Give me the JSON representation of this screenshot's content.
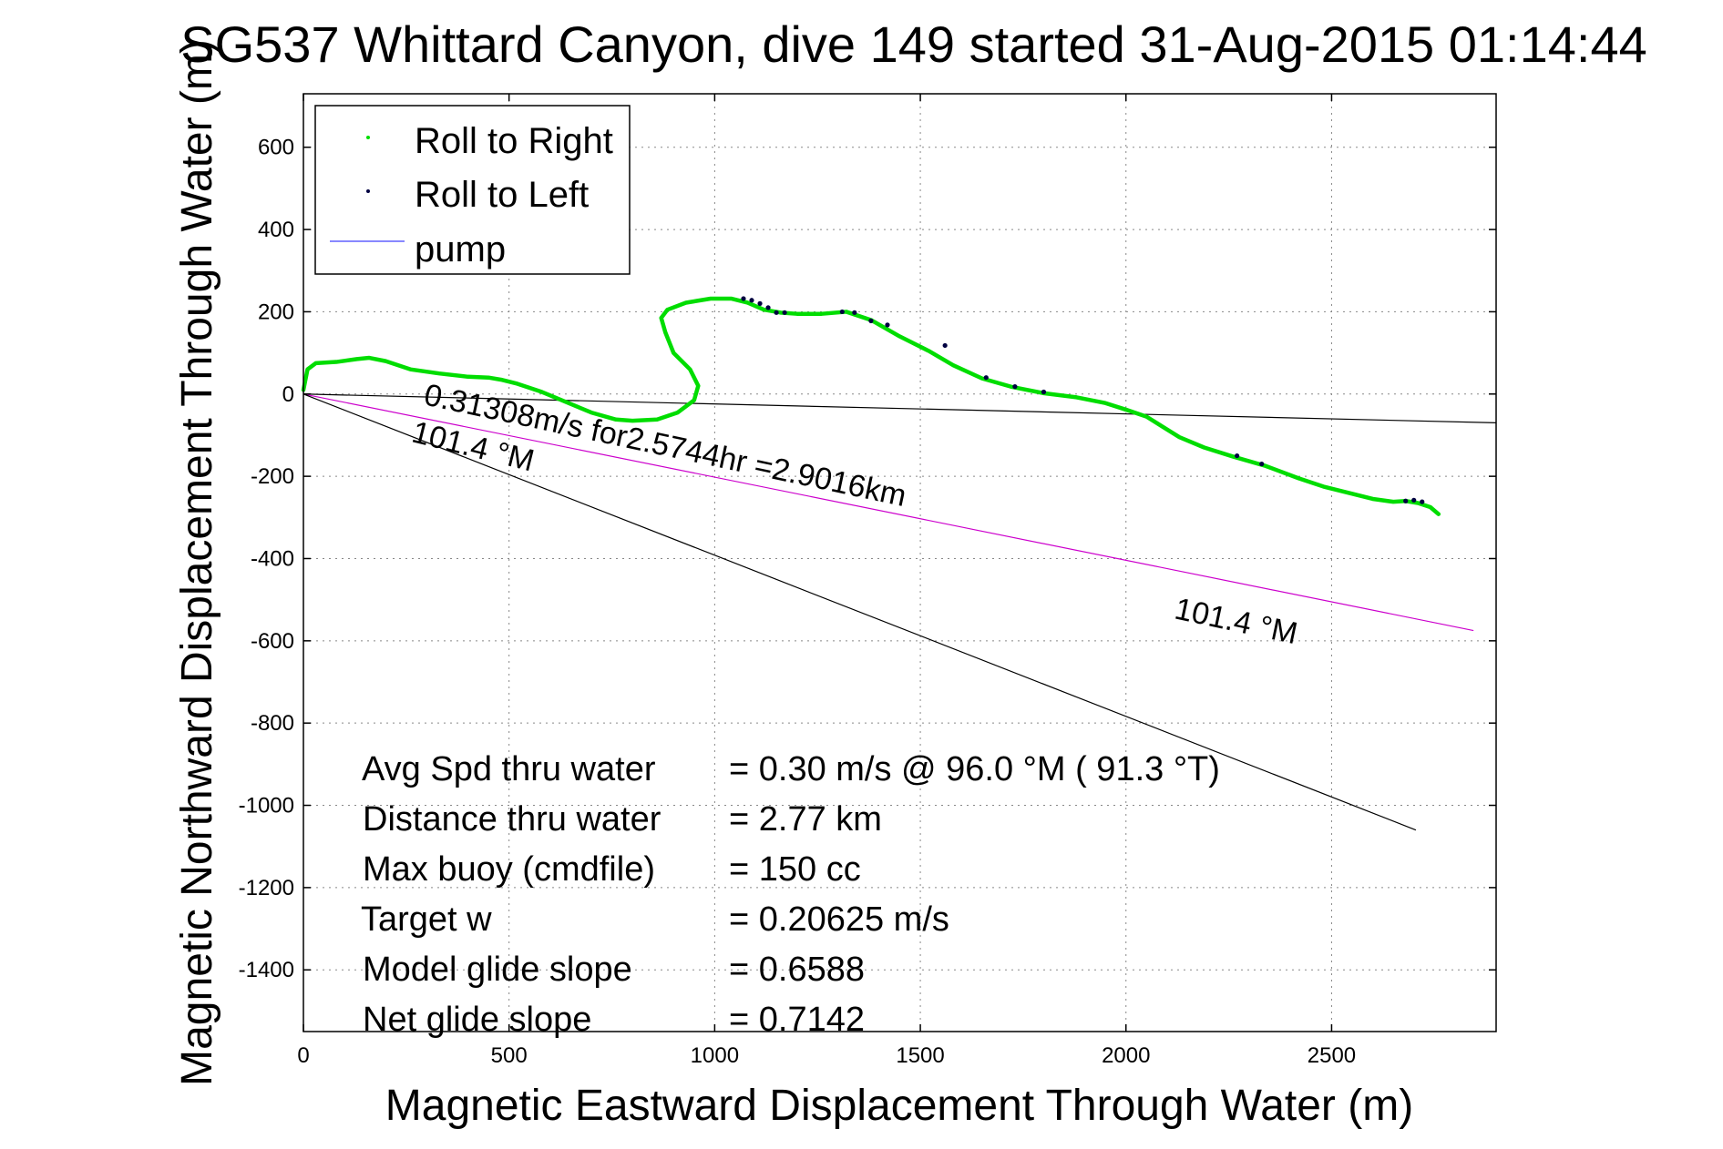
{
  "chart_data": {
    "type": "line",
    "title": "SG537 Whittard Canyon, dive 149 started 31-Aug-2015 01:14:44",
    "xlabel": "Magnetic Eastward Displacement Through Water (m)",
    "ylabel": "Magnetic Northward Displacement Through Water (m)",
    "xlim": [
      0,
      2900
    ],
    "ylim": [
      -1550,
      730
    ],
    "xticks": [
      0,
      500,
      1000,
      1500,
      2000,
      2500
    ],
    "yticks": [
      600,
      400,
      200,
      0,
      -200,
      -400,
      -600,
      -800,
      -1000,
      -1200,
      -1400
    ],
    "grid": true,
    "legend": {
      "position": "top-left",
      "items": [
        {
          "label": "Roll to Right",
          "color": "#00dd00",
          "marker": "dot"
        },
        {
          "label": "Roll to Left",
          "color": "#000040",
          "marker": "dot"
        },
        {
          "label": "pump",
          "color": "#6060ff",
          "marker": "line"
        }
      ]
    },
    "series": [
      {
        "name": "Roll to Right",
        "color": "#00dd00",
        "x": [
          0,
          10,
          30,
          80,
          130,
          160,
          200,
          260,
          330,
          400,
          450,
          480,
          520,
          580,
          640,
          700,
          760,
          800,
          860,
          910,
          950,
          960,
          940,
          900,
          880,
          870,
          885,
          930,
          990,
          1040,
          1080,
          1120,
          1160,
          1200,
          1260,
          1320,
          1380,
          1450,
          1520,
          1580,
          1650,
          1720,
          1800,
          1880,
          1950,
          2000,
          2050,
          2090,
          2130,
          2190,
          2260,
          2340,
          2420,
          2480,
          2540,
          2600,
          2650,
          2680,
          2710,
          2740,
          2760
        ],
        "y": [
          10,
          60,
          75,
          78,
          85,
          88,
          80,
          60,
          50,
          42,
          40,
          35,
          25,
          5,
          -20,
          -45,
          -62,
          -65,
          -62,
          -45,
          -15,
          20,
          60,
          100,
          150,
          185,
          205,
          222,
          232,
          232,
          222,
          205,
          198,
          195,
          195,
          200,
          180,
          140,
          105,
          70,
          38,
          18,
          2,
          -8,
          -22,
          -38,
          -55,
          -80,
          -105,
          -130,
          -152,
          -175,
          -205,
          -225,
          -240,
          -255,
          -262,
          -260,
          -265,
          -275,
          -292
        ]
      },
      {
        "name": "Roll to Left",
        "color": "#000040",
        "x": [
          1070,
          1090,
          1110,
          1130,
          1150,
          1170,
          1310,
          1340,
          1380,
          1420,
          1560,
          1660,
          1730,
          1800,
          2270,
          2330,
          2680,
          2700,
          2720
        ],
        "y": [
          232,
          228,
          220,
          210,
          198,
          198,
          200,
          198,
          178,
          168,
          118,
          40,
          18,
          5,
          -150,
          -170,
          -260,
          -258,
          -262
        ]
      }
    ],
    "lines": [
      {
        "name": "current direction",
        "color": "#000000",
        "x": [
          0,
          2900
        ],
        "y": [
          0,
          -70
        ]
      },
      {
        "name": "magenta heading",
        "color": "#cc00cc",
        "x": [
          0,
          2845
        ],
        "y": [
          0,
          -575
        ]
      },
      {
        "name": "black heading",
        "color": "#000000",
        "x": [
          0,
          2705
        ],
        "y": [
          0,
          -1060
        ]
      }
    ],
    "annotations": [
      {
        "text": "0.31308m/s for2.5744hr =2.9016km",
        "x": 290,
        "y": -25,
        "angle": 12
      },
      {
        "text": "101.4 °M",
        "x": 260,
        "y": -115,
        "angle": 14
      },
      {
        "text": "101.4 °M",
        "x": 2115,
        "y": -545,
        "angle": 12
      }
    ],
    "stats": [
      {
        "label": "Avg Spd thru water",
        "value": "=  0.30 m/s @  96.0 °M ( 91.3 °T)"
      },
      {
        "label": "Distance thru water",
        "value": "=  2.77 km"
      },
      {
        "label": "Max buoy (cmdfile)",
        "value": "= 150 cc"
      },
      {
        "label": "Target w",
        "value": "= 0.20625 m/s"
      },
      {
        "label": "Model glide slope",
        "value": "= 0.6588"
      },
      {
        "label": "Net glide slope",
        "value": "= 0.7142"
      }
    ]
  }
}
